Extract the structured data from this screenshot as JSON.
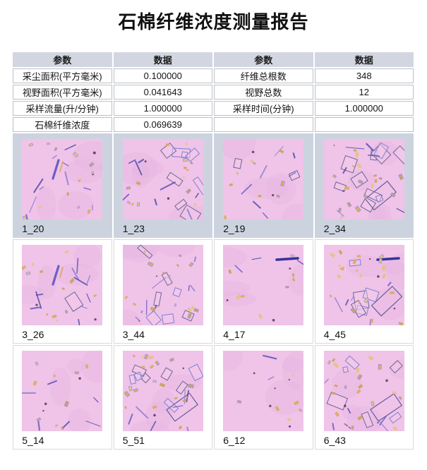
{
  "title": "石棉纤维浓度测量报告",
  "colors": {
    "header_bg": "#d2d6e1",
    "shaded_row_bg": "#ccd3df",
    "table_border": "#bcc0c8",
    "micrograph_bg": "#f0c3e8",
    "micrograph_cloud": "#dba8d8",
    "fiber_blue": "#6a5fc6",
    "fiber_dark": "#32329c",
    "speck_yellow": "#d9ad62",
    "box_stroke": "#7d81d2"
  },
  "param_table": {
    "headers": [
      "参数",
      "数据",
      "参数",
      "数据"
    ],
    "rows": [
      [
        "采尘面积(平方毫米)",
        "0.100000",
        "纤维总根数",
        "348"
      ],
      [
        "视野面积(平方毫米)",
        "0.041643",
        "视野总数",
        "12"
      ],
      [
        "采样流量(升/分钟)",
        "1.000000",
        "采样时间(分钟)",
        "1.000000"
      ],
      [
        "石棉纤维浓度",
        "0.069639",
        "",
        ""
      ]
    ]
  },
  "micrographs": {
    "tiles": [
      {
        "label": "1_20",
        "seed": 3,
        "fibers": 10,
        "specks": 13,
        "boxes": 0,
        "darks": 2,
        "thickFiber": true
      },
      {
        "label": "1_23",
        "seed": 7,
        "fibers": 8,
        "specks": 14,
        "boxes": 8,
        "darks": 2
      },
      {
        "label": "2_19",
        "seed": 11,
        "fibers": 7,
        "specks": 9,
        "boxes": 2,
        "darks": 2
      },
      {
        "label": "2_34",
        "seed": 13,
        "fibers": 6,
        "specks": 18,
        "boxes": 10,
        "darks": 2,
        "bigBox": true
      },
      {
        "label": "3_26",
        "seed": 17,
        "fibers": 10,
        "specks": 12,
        "boxes": 1,
        "darks": 2,
        "thickFiber": true
      },
      {
        "label": "3_44",
        "seed": 19,
        "fibers": 8,
        "specks": 16,
        "boxes": 7,
        "darks": 2
      },
      {
        "label": "4_17",
        "seed": 23,
        "fibers": 3,
        "specks": 8,
        "boxes": 0,
        "darks": 3,
        "bigFiber": true
      },
      {
        "label": "4_45",
        "seed": 29,
        "fibers": 5,
        "specks": 22,
        "boxes": 5,
        "darks": 3,
        "bigFiber": true,
        "bigBox": true
      },
      {
        "label": "5_14",
        "seed": 31,
        "fibers": 6,
        "specks": 9,
        "boxes": 0,
        "darks": 3
      },
      {
        "label": "5_51",
        "seed": 37,
        "fibers": 7,
        "specks": 20,
        "boxes": 8,
        "darks": 2,
        "bigBox": true
      },
      {
        "label": "6_12",
        "seed": 41,
        "fibers": 2,
        "specks": 6,
        "boxes": 0,
        "darks": 5
      },
      {
        "label": "6_43",
        "seed": 43,
        "fibers": 6,
        "specks": 20,
        "boxes": 6,
        "darks": 3,
        "bigBox": true
      }
    ]
  }
}
